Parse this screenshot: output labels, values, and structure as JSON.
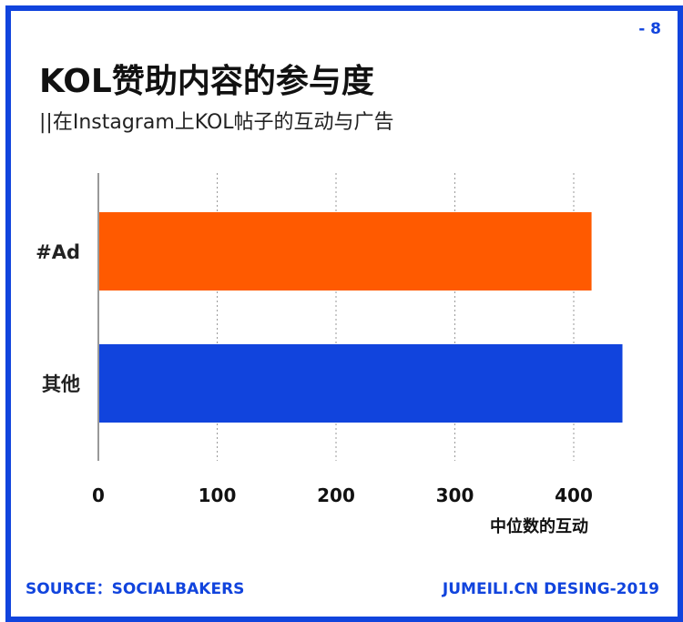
{
  "page_number": "- 8",
  "title": "KOL赞助内容的参与度",
  "subtitle": "||在Instagram上KOL帖子的互动与广告",
  "footer": {
    "source": "SOURCE：SOCIALBAKERS",
    "credit": "JUMEILI.CN DESING-2019"
  },
  "colors": {
    "frame": "#1144dd",
    "ad_bar": "#ff5a00",
    "other_bar": "#1144dd"
  },
  "chart_data": {
    "type": "bar",
    "orientation": "horizontal",
    "categories": [
      "#Ad",
      "其他"
    ],
    "values": [
      415,
      441
    ],
    "xlabel": "中位数的互动",
    "ylabel": "",
    "xlim": [
      0,
      450
    ],
    "xticks": [
      0,
      100,
      200,
      300,
      400
    ],
    "tick_labels": [
      "0",
      "100",
      "200",
      "300",
      "400"
    ],
    "grid": "vertical dotted",
    "legend": "none"
  }
}
